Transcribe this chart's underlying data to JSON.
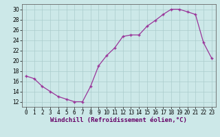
{
  "x": [
    0,
    1,
    2,
    3,
    4,
    5,
    6,
    7,
    8,
    9,
    10,
    11,
    12,
    13,
    14,
    15,
    16,
    17,
    18,
    19,
    20,
    21,
    22,
    23
  ],
  "y": [
    17,
    16.5,
    15,
    14,
    13,
    12.5,
    12,
    12,
    15,
    19,
    21,
    22.5,
    24.7,
    25,
    25,
    26.7,
    27.8,
    29,
    30,
    30,
    29.5,
    29,
    23.5,
    20.5
  ],
  "line_color": "#993399",
  "marker": "+",
  "bg_color": "#cce8e8",
  "grid_color": "#aacccc",
  "xlabel": "Windchill (Refroidissement éolien,°C)",
  "xlim": [
    -0.5,
    23.5
  ],
  "ylim": [
    11,
    31
  ],
  "yticks": [
    12,
    14,
    16,
    18,
    20,
    22,
    24,
    26,
    28,
    30
  ],
  "xticks": [
    0,
    1,
    2,
    3,
    4,
    5,
    6,
    7,
    8,
    9,
    10,
    11,
    12,
    13,
    14,
    15,
    16,
    17,
    18,
    19,
    20,
    21,
    22,
    23
  ],
  "tick_fontsize": 5.5,
  "label_fontsize": 6.5
}
